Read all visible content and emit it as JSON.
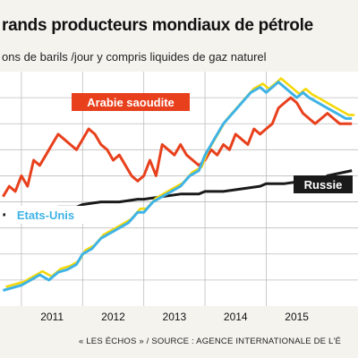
{
  "header": {
    "title": "rands producteurs mondiaux de pétrole",
    "subtitle": "ons de barils /jour y compris liquides de gaz naturel"
  },
  "footer": {
    "source": "« LES ÉCHOS » / SOURCE : AGENCE INTERNATIONALE DE L'É"
  },
  "colors": {
    "arabie": "#e8401c",
    "etats_unis": "#3fb3e6",
    "etats_unis_alt": "#f5d80a",
    "russie": "#1a1a1a",
    "grid": "#bdbdbd"
  },
  "chart_data": {
    "type": "line",
    "title": "",
    "xlabel": "",
    "ylabel": "",
    "x_ticks": [
      "2011",
      "2012",
      "2013",
      "2014",
      "2015"
    ],
    "xlim": [
      2010.65,
      2016.5
    ],
    "ylim": [
      8.5,
      13.0
    ],
    "grid": true,
    "series": [
      {
        "name": "Arabie saoudite",
        "color": "#e8401c",
        "x": [
          2010.7,
          2010.8,
          2010.9,
          2011.0,
          2011.1,
          2011.2,
          2011.3,
          2011.4,
          2011.5,
          2011.6,
          2011.7,
          2011.8,
          2011.9,
          2012.0,
          2012.1,
          2012.2,
          2012.3,
          2012.4,
          2012.5,
          2012.6,
          2012.7,
          2012.8,
          2012.9,
          2013.0,
          2013.1,
          2013.2,
          2013.3,
          2013.4,
          2013.5,
          2013.6,
          2013.7,
          2013.8,
          2013.9,
          2014.0,
          2014.1,
          2014.2,
          2014.3,
          2014.4,
          2014.5,
          2014.6,
          2014.7,
          2014.8,
          2014.9,
          2015.0,
          2015.1,
          2015.2,
          2015.3,
          2015.4,
          2015.5,
          2015.6,
          2015.7,
          2015.8,
          2015.9,
          2016.0,
          2016.1,
          2016.2,
          2016.4
        ],
        "values": [
          10.6,
          10.8,
          10.7,
          11.0,
          10.8,
          11.3,
          11.2,
          11.4,
          11.6,
          11.8,
          11.7,
          11.6,
          11.5,
          11.7,
          11.9,
          11.8,
          11.6,
          11.5,
          11.3,
          11.4,
          11.2,
          11.0,
          10.9,
          11.0,
          11.3,
          11.0,
          11.6,
          11.5,
          11.4,
          11.6,
          11.4,
          11.3,
          11.2,
          11.3,
          11.5,
          11.4,
          11.6,
          11.5,
          11.8,
          11.7,
          11.6,
          11.9,
          11.8,
          11.9,
          12.0,
          12.3,
          12.4,
          12.5,
          12.4,
          12.2,
          12.1,
          12.0,
          12.1,
          12.2,
          12.1,
          12.0,
          12.0
        ]
      },
      {
        "name": "Etats-Unis",
        "color": "#3fb3e6",
        "alt_color": "#f5d80a",
        "x": [
          2010.7,
          2010.85,
          2011.0,
          2011.15,
          2011.3,
          2011.45,
          2011.6,
          2011.75,
          2011.9,
          2012.0,
          2012.15,
          2012.3,
          2012.45,
          2012.6,
          2012.75,
          2012.9,
          2013.0,
          2013.15,
          2013.3,
          2013.45,
          2013.6,
          2013.75,
          2013.9,
          2014.0,
          2014.15,
          2014.3,
          2014.45,
          2014.6,
          2014.75,
          2014.9,
          2015.0,
          2015.1,
          2015.2,
          2015.3,
          2015.4,
          2015.5,
          2015.6,
          2015.7,
          2015.85,
          2016.0,
          2016.15,
          2016.3,
          2016.4
        ],
        "values": [
          8.8,
          8.85,
          8.9,
          9.0,
          9.1,
          9.0,
          9.15,
          9.2,
          9.3,
          9.5,
          9.6,
          9.8,
          9.9,
          10.0,
          10.1,
          10.3,
          10.3,
          10.5,
          10.6,
          10.7,
          10.8,
          11.0,
          11.1,
          11.4,
          11.7,
          12.0,
          12.2,
          12.4,
          12.6,
          12.7,
          12.6,
          12.7,
          12.8,
          12.7,
          12.6,
          12.5,
          12.6,
          12.5,
          12.4,
          12.3,
          12.2,
          12.1,
          12.1
        ]
      },
      {
        "name": "Russie",
        "color": "#1a1a1a",
        "x": [
          2010.7,
          2011.0,
          2011.3,
          2011.6,
          2011.9,
          2012.0,
          2012.3,
          2012.6,
          2012.9,
          2013.0,
          2013.3,
          2013.6,
          2013.9,
          2014.0,
          2014.3,
          2014.6,
          2014.9,
          2015.0,
          2015.3,
          2015.6,
          2015.9,
          2016.0,
          2016.2,
          2016.4
        ],
        "values": [
          10.25,
          10.3,
          10.35,
          10.4,
          10.4,
          10.45,
          10.5,
          10.5,
          10.55,
          10.55,
          10.6,
          10.65,
          10.65,
          10.7,
          10.7,
          10.75,
          10.8,
          10.85,
          10.85,
          10.9,
          10.9,
          11.0,
          11.05,
          11.1
        ]
      }
    ]
  }
}
